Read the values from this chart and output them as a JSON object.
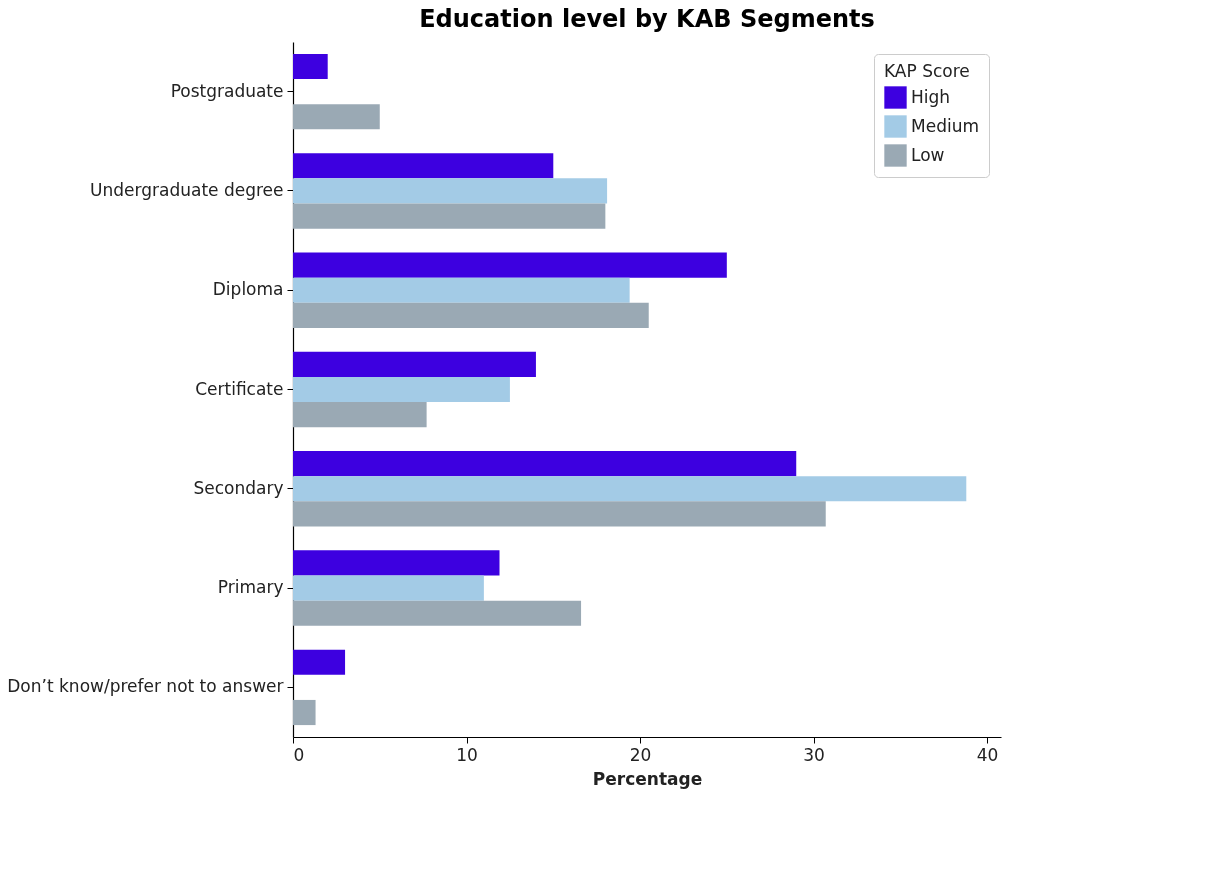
{
  "chart_data": {
    "type": "bar",
    "orientation": "horizontal",
    "title": "Education level by KAB Segments",
    "xlabel": "Percentage",
    "legend_title": "KAP Score",
    "legend": "top right",
    "categories": [
      "Postgraduate",
      "Undergraduate degree",
      "Diploma",
      "Certificate",
      "Secondary",
      "Primary",
      "Don’t know/prefer not to answer"
    ],
    "series": [
      {
        "name": "High",
        "color": "#3d00e0",
        "values": [
          2.0,
          15.0,
          25.0,
          14.0,
          29.0,
          11.9,
          3.0
        ]
      },
      {
        "name": "Medium",
        "color": "#a3cbe6",
        "values": [
          0,
          18.1,
          19.4,
          12.5,
          38.8,
          11.0,
          0
        ]
      },
      {
        "name": "Low",
        "color": "#9aa9b4",
        "values": [
          5.0,
          18.0,
          20.5,
          7.7,
          30.7,
          16.6,
          1.3
        ]
      }
    ],
    "xlim": [
      0,
      40.8
    ],
    "xticks": [
      0,
      10,
      20,
      30,
      40
    ]
  }
}
